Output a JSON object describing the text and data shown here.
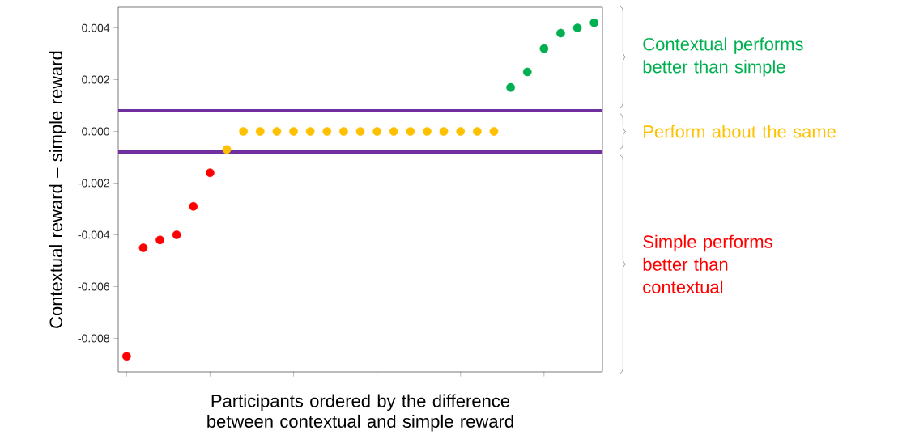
{
  "chart_data": {
    "type": "scatter",
    "xlabel": "Participants ordered by the difference between contextual and simple reward",
    "ylabel": "Contextual reward – simple reward",
    "series": [
      {
        "color": "#ff0000",
        "values": [
          -0.0087,
          -0.0045,
          -0.0042,
          -0.004,
          -0.0029,
          -0.0016,
          null,
          null,
          null,
          null,
          null,
          null,
          null,
          null,
          null,
          null,
          null,
          null,
          null,
          null,
          null,
          null,
          null,
          null,
          null,
          null,
          null,
          null,
          null
        ]
      },
      {
        "color": "#ffc000",
        "values": [
          null,
          null,
          null,
          null,
          null,
          null,
          -0.0007,
          0,
          0,
          0,
          0,
          0,
          0,
          0,
          0,
          0,
          0,
          0,
          0,
          0,
          0,
          0,
          0,
          null,
          null,
          null,
          null,
          null,
          null
        ]
      },
      {
        "color": "#00b050",
        "values": [
          null,
          null,
          null,
          null,
          null,
          null,
          null,
          null,
          null,
          null,
          null,
          null,
          null,
          null,
          null,
          null,
          null,
          null,
          null,
          null,
          null,
          null,
          null,
          0.0017,
          0.0023,
          0.0032,
          0.0038,
          0.004,
          0.0042
        ]
      }
    ],
    "categories": [
      null,
      null,
      null,
      null,
      null,
      null,
      null,
      null,
      null,
      null,
      null,
      null,
      null,
      null,
      null,
      null,
      null,
      null,
      null,
      null,
      null,
      null,
      null,
      null,
      null,
      null,
      null,
      null,
      null
    ],
    "ylim": [
      -0.0093,
      0.0048
    ],
    "yticks": [
      {
        "value": -0.008,
        "label": "-0.008"
      },
      {
        "value": -0.006,
        "label": "-0.006"
      },
      {
        "value": -0.004,
        "label": "-0.004"
      },
      {
        "value": -0.002,
        "label": "-0.002"
      },
      {
        "value": 0,
        "label": "0.000"
      },
      {
        "value": 0.002,
        "label": "0.002"
      },
      {
        "value": 0.004,
        "label": "0.004"
      }
    ],
    "tick_labels": "y",
    "grid": false,
    "marker": "circle",
    "ref_lines": [
      {
        "axis": "y",
        "value": 0.0008,
        "color": "#7030a0"
      },
      {
        "axis": "y",
        "value": -0.0008,
        "color": "#7030a0"
      }
    ],
    "annotations": [
      "Contextual performs better than simple",
      "Perform about the same",
      "Simple performs better than contextual"
    ]
  }
}
